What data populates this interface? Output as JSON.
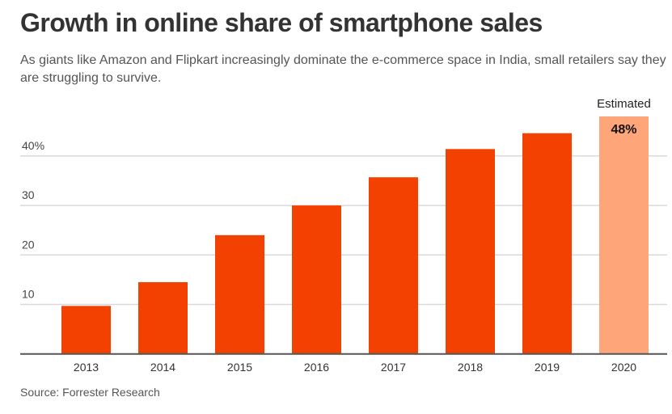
{
  "title": "Growth in online share of smartphone sales",
  "subtitle": "As giants like Amazon and Flipkart increasingly dominate the e-commerce space in India, small retailers say they are struggling to survive.",
  "source": "Source: Forrester Research",
  "colors": {
    "bar": "#f24100",
    "estimated": "#ffa57a",
    "grid": "#d9d9d9",
    "axis": "#555555"
  },
  "chart_data": {
    "type": "bar",
    "title": "Growth in online share of smartphone sales",
    "xlabel": "",
    "ylabel": "",
    "categories": [
      "2013",
      "2014",
      "2015",
      "2016",
      "2017",
      "2018",
      "2019",
      "2020"
    ],
    "values": [
      9.7,
      14.5,
      24.0,
      30.0,
      35.7,
      41.4,
      44.6,
      48
    ],
    "estimated": [
      false,
      false,
      false,
      false,
      false,
      false,
      false,
      true
    ],
    "estimated_label": "Estimated",
    "value_label_2020": "48%",
    "yticks": [
      10,
      20,
      30,
      40
    ],
    "ytick_labels": [
      "10",
      "20",
      "30",
      "40%"
    ],
    "ylim": [
      0,
      50
    ],
    "grid": true
  }
}
